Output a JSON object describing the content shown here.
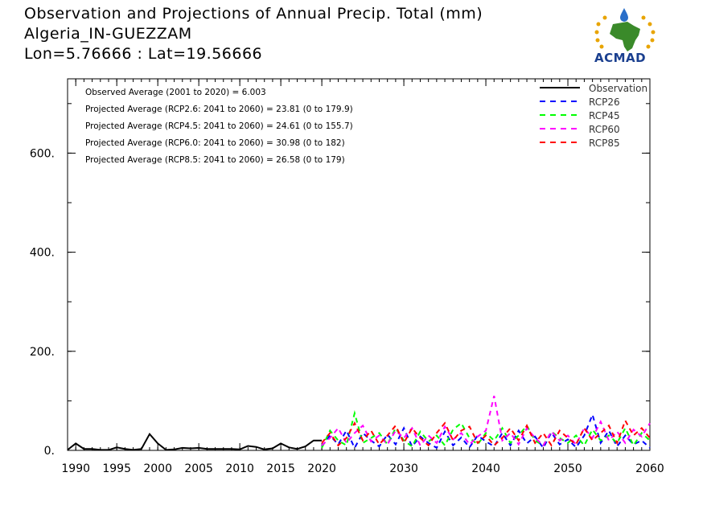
{
  "header": {
    "title": "Observation and Projections of Annual Precip. Total (mm)",
    "location": "Algeria_IN-GUEZZAM",
    "coords": "Lon=5.76666 : Lat=19.56666"
  },
  "logo": {
    "text": "ACMAD"
  },
  "colors": {
    "observation": "#000000",
    "rcp26": "#0000ff",
    "rcp45": "#00ff00",
    "rcp60": "#ff00ff",
    "rcp85": "#ff0000"
  },
  "chart_data": {
    "type": "line",
    "title": "Observation and Projections of Annual Precip. Total (mm)",
    "xlim": [
      1989,
      2060
    ],
    "ylim": [
      0,
      750
    ],
    "x_ticks": [
      1990,
      1995,
      2000,
      2005,
      2010,
      2015,
      2020,
      2030,
      2040,
      2050,
      2060
    ],
    "y_ticks": [
      0,
      200,
      400,
      600
    ],
    "y_tick_labels": [
      "0.",
      "200.",
      "400.",
      "600."
    ],
    "grid": false,
    "legend_position": "top-right",
    "annotations": [
      "Observed Average (2001 to 2020) = 6.003",
      "Projected Average (RCP2.6: 2041 to 2060) = 23.81 (0 to 179.9)",
      "Projected Average (RCP4.5: 2041 to 2060) = 24.61 (0 to 155.7)",
      "Projected Average (RCP6.0: 2041 to 2060) = 30.98 (0 to 182)",
      "Projected Average (RCP8.5: 2041 to 2060) = 26.58 (0 to 179)"
    ],
    "series": [
      {
        "name": "Observation",
        "style": "solid",
        "x": [
          1989,
          1990,
          1991,
          1992,
          1993,
          1994,
          1995,
          1996,
          1997,
          1998,
          1999,
          2000,
          2001,
          2002,
          2003,
          2004,
          2005,
          2006,
          2007,
          2008,
          2009,
          2010,
          2011,
          2012,
          2013,
          2014,
          2015,
          2016,
          2017,
          2018,
          2019,
          2020
        ],
        "values": [
          1,
          14,
          3,
          3,
          1,
          1,
          6,
          3,
          1,
          3,
          33,
          14,
          1,
          2,
          5,
          4,
          5,
          3,
          3,
          3,
          3,
          2,
          9,
          7,
          2,
          4,
          14,
          6,
          3,
          8,
          20,
          20
        ]
      },
      {
        "name": "RCP26",
        "style": "dashed",
        "x": [
          2020,
          2021,
          2022,
          2023,
          2024,
          2025,
          2026,
          2027,
          2028,
          2029,
          2030,
          2031,
          2032,
          2033,
          2034,
          2035,
          2036,
          2037,
          2038,
          2039,
          2040,
          2041,
          2042,
          2043,
          2044,
          2045,
          2046,
          2047,
          2048,
          2049,
          2050,
          2051,
          2052,
          2053,
          2054,
          2055,
          2056,
          2057,
          2058,
          2059,
          2060
        ],
        "values": [
          8,
          30,
          12,
          40,
          5,
          35,
          20,
          8,
          32,
          12,
          45,
          8,
          28,
          15,
          5,
          38,
          10,
          26,
          6,
          30,
          18,
          8,
          35,
          10,
          40,
          14,
          28,
          5,
          36,
          12,
          22,
          6,
          30,
          72,
          15,
          40,
          8,
          30,
          12,
          20,
          5
        ]
      },
      {
        "name": "RCP45",
        "style": "dashed",
        "x": [
          2020,
          2021,
          2022,
          2023,
          2024,
          2025,
          2026,
          2027,
          2028,
          2029,
          2030,
          2031,
          2032,
          2033,
          2034,
          2035,
          2036,
          2037,
          2038,
          2039,
          2040,
          2041,
          2042,
          2043,
          2044,
          2045,
          2046,
          2047,
          2048,
          2049,
          2050,
          2051,
          2052,
          2053,
          2054,
          2055,
          2056,
          2057,
          2058,
          2059,
          2060
        ],
        "values": [
          5,
          40,
          20,
          10,
          75,
          15,
          25,
          35,
          12,
          45,
          20,
          8,
          38,
          18,
          30,
          10,
          42,
          55,
          25,
          12,
          35,
          20,
          45,
          15,
          30,
          50,
          20,
          10,
          38,
          25,
          15,
          30,
          10,
          42,
          20,
          30,
          15,
          45,
          10,
          35,
          20
        ]
      },
      {
        "name": "RCP60",
        "style": "dashed",
        "x": [
          2020,
          2021,
          2022,
          2023,
          2024,
          2025,
          2026,
          2027,
          2028,
          2029,
          2030,
          2031,
          2032,
          2033,
          2034,
          2035,
          2036,
          2037,
          2038,
          2039,
          2040,
          2041,
          2042,
          2043,
          2044,
          2045,
          2046,
          2047,
          2048,
          2049,
          2050,
          2051,
          2052,
          2053,
          2054,
          2055,
          2056,
          2057,
          2058,
          2059,
          2060
        ],
        "values": [
          10,
          25,
          45,
          15,
          35,
          50,
          18,
          30,
          12,
          40,
          25,
          45,
          10,
          30,
          15,
          48,
          22,
          35,
          12,
          28,
          40,
          110,
          20,
          35,
          12,
          45,
          25,
          10,
          38,
          20,
          30,
          12,
          45,
          25,
          58,
          20,
          38,
          15,
          42,
          28,
          55
        ]
      },
      {
        "name": "RCP85",
        "style": "dashed",
        "x": [
          2020,
          2021,
          2022,
          2023,
          2024,
          2025,
          2026,
          2027,
          2028,
          2029,
          2030,
          2031,
          2032,
          2033,
          2034,
          2035,
          2036,
          2037,
          2038,
          2039,
          2040,
          2041,
          2042,
          2043,
          2044,
          2045,
          2046,
          2047,
          2048,
          2049,
          2050,
          2051,
          2052,
          2053,
          2054,
          2055,
          2056,
          2057,
          2058,
          2059,
          2060
        ],
        "values": [
          15,
          35,
          10,
          25,
          55,
          20,
          40,
          12,
          30,
          50,
          15,
          45,
          25,
          10,
          35,
          55,
          20,
          40,
          48,
          15,
          30,
          10,
          25,
          45,
          20,
          50,
          15,
          35,
          10,
          40,
          25,
          12,
          45,
          20,
          35,
          50,
          15,
          60,
          30,
          45,
          25
        ]
      }
    ]
  }
}
